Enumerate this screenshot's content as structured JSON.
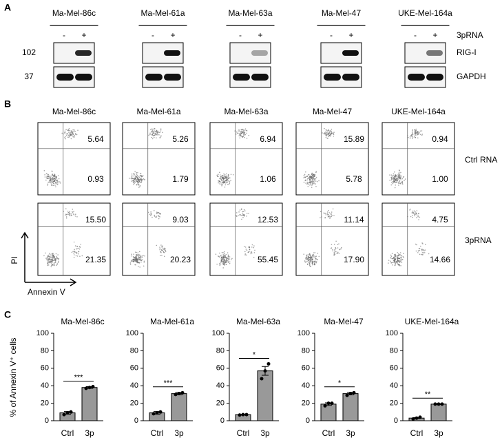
{
  "panel_a": {
    "label": "A",
    "lines": [
      "Ma-Mel-86c",
      "Ma-Mel-61a",
      "Ma-Mel-63a",
      "Ma-Mel-47",
      "UKE-Mel-164a"
    ],
    "lanes": [
      "-",
      "+"
    ],
    "treatment": "3pRNA",
    "rows": [
      {
        "marker": "102",
        "name": "RIG-I"
      },
      {
        "marker": "37",
        "name": "GAPDH"
      }
    ]
  },
  "panel_b": {
    "label": "B",
    "lines": [
      "Ma-Mel-86c",
      "Ma-Mel-61a",
      "Ma-Mel-63a",
      "Ma-Mel-47",
      "UKE-Mel-164a"
    ],
    "y_axis": "PI",
    "x_axis": "Annexin V",
    "rows": [
      {
        "name": "Ctrl RNA",
        "upper": [
          "5.64",
          "5.26",
          "6.94",
          "15.89",
          "0.94"
        ],
        "lower": [
          "0.93",
          "1.79",
          "1.06",
          "5.78",
          "1.00"
        ]
      },
      {
        "name": "3pRNA",
        "upper": [
          "15.50",
          "9.03",
          "12.53",
          "11.14",
          "4.75"
        ],
        "lower": [
          "21.35",
          "20.23",
          "55.45",
          "17.90",
          "14.66"
        ]
      }
    ]
  },
  "panel_c": {
    "label": "C",
    "y_axis": "% of Annexin V⁺ cells"
  },
  "chart_data": [
    {
      "type": "bar",
      "title": "Ma-Mel-86c",
      "categories": [
        "Ctrl",
        "3p"
      ],
      "values": [
        9,
        38
      ],
      "errors": [
        1.5,
        1
      ],
      "points": [
        [
          7,
          9,
          10
        ],
        [
          37,
          38,
          39
        ]
      ],
      "significance": "***",
      "color": "#999999",
      "ylim": [
        0,
        100
      ],
      "yticks": [
        0,
        20,
        40,
        60,
        80,
        100
      ]
    },
    {
      "type": "bar",
      "title": "Ma-Mel-61a",
      "categories": [
        "Ctrl",
        "3p"
      ],
      "values": [
        9,
        31
      ],
      "errors": [
        1.5,
        1.5
      ],
      "points": [
        [
          8,
          9,
          10
        ],
        [
          30,
          31,
          32
        ]
      ],
      "significance": "***",
      "color": "#999999",
      "ylim": [
        0,
        100
      ],
      "yticks": [
        0,
        20,
        40,
        60,
        80,
        100
      ]
    },
    {
      "type": "bar",
      "title": "Ma-Mel-63a",
      "categories": [
        "Ctrl",
        "3p"
      ],
      "values": [
        7,
        57
      ],
      "errors": [
        0.5,
        5
      ],
      "points": [
        [
          6.5,
          7,
          7
        ],
        [
          48,
          57,
          65
        ]
      ],
      "significance": "*",
      "color": "#999999",
      "ylim": [
        0,
        100
      ],
      "yticks": [
        0,
        20,
        40,
        60,
        80,
        100
      ]
    },
    {
      "type": "bar",
      "title": "Ma-Mel-47",
      "categories": [
        "Ctrl",
        "3p"
      ],
      "values": [
        19,
        31
      ],
      "errors": [
        1.5,
        1.5
      ],
      "points": [
        [
          17,
          20,
          20
        ],
        [
          29,
          31,
          32
        ]
      ],
      "significance": "*",
      "color": "#999999",
      "ylim": [
        0,
        100
      ],
      "yticks": [
        0,
        20,
        40,
        60,
        80,
        100
      ]
    },
    {
      "type": "bar",
      "title": "UKE-Mel-164a",
      "categories": [
        "Ctrl",
        "3p"
      ],
      "values": [
        3,
        19
      ],
      "errors": [
        0.5,
        0.5
      ],
      "points": [
        [
          2,
          3,
          4
        ],
        [
          19,
          19,
          19
        ]
      ],
      "significance": "**",
      "color": "#999999",
      "ylim": [
        0,
        100
      ],
      "yticks": [
        0,
        20,
        40,
        60,
        80,
        100
      ]
    }
  ]
}
